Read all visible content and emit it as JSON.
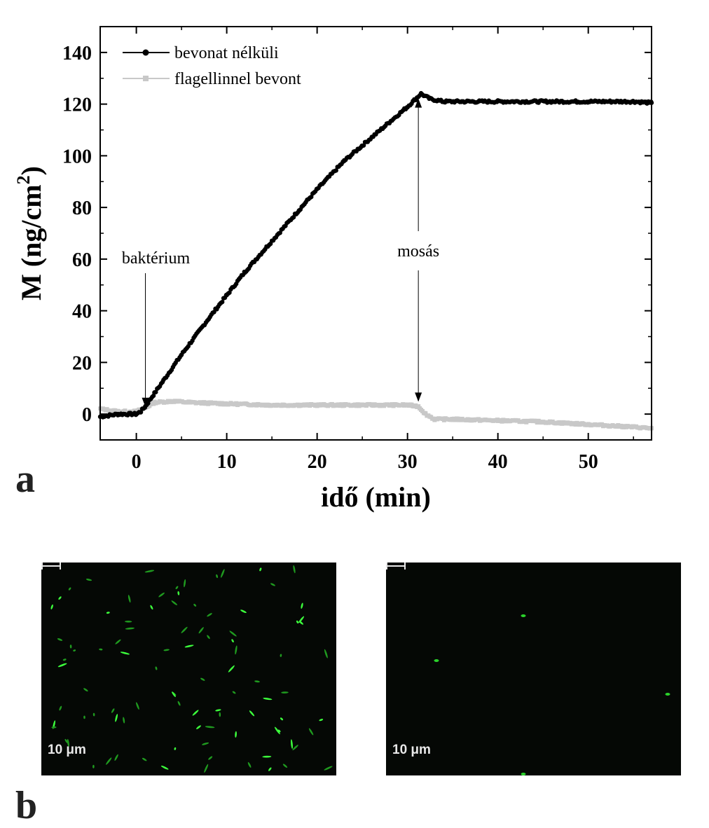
{
  "panel_a_label": "a",
  "panel_b_label": "b",
  "chart_data": {
    "type": "line",
    "title": "",
    "xlabel": "idő (min)",
    "ylabel": "M (ng/cm2)",
    "ylabel_parts": {
      "main": "M (ng/cm",
      "sup": "2",
      "end": ")"
    },
    "xlim": [
      -4,
      57
    ],
    "ylim": [
      -10,
      150
    ],
    "xticks": [
      0,
      10,
      20,
      30,
      40,
      50
    ],
    "yticks": [
      0,
      20,
      40,
      60,
      80,
      100,
      120,
      140
    ],
    "grid": false,
    "legend_position": "top-left",
    "series": [
      {
        "name": "bevonat nélküli",
        "color": "#000000",
        "marker": "circle",
        "x": [
          -4,
          -2,
          0,
          0.5,
          1,
          2,
          3,
          5,
          8,
          10,
          12,
          15,
          18,
          20,
          23,
          25,
          28,
          30,
          31.5,
          32.5,
          34,
          36,
          40,
          45,
          50,
          55,
          57
        ],
        "y": [
          -1,
          0,
          0,
          1,
          3,
          8,
          13,
          23,
          37,
          46,
          55,
          67,
          79,
          87,
          98,
          104,
          113,
          119,
          124,
          122,
          121,
          121,
          121,
          121,
          121,
          121,
          120.5
        ]
      },
      {
        "name": "flagellinnel bevont",
        "color": "#c8c8c8",
        "marker": "square",
        "x": [
          -4,
          -2,
          0,
          1,
          2,
          4,
          6,
          10,
          15,
          20,
          25,
          28,
          30,
          31.2,
          32,
          33,
          35,
          40,
          45,
          50,
          55,
          57
        ],
        "y": [
          2,
          1,
          1,
          2.5,
          4.5,
          5,
          4.5,
          4,
          3.5,
          3.5,
          3.5,
          3.5,
          3.5,
          3,
          0,
          -2,
          -2,
          -2.5,
          -3,
          -4,
          -5,
          -5.5
        ]
      }
    ],
    "annotations": [
      {
        "text": "baktérium",
        "x": 1,
        "y": 2,
        "label_y": 60
      },
      {
        "text": "mosás",
        "x": 31.2,
        "y": 4,
        "y_top": 123,
        "label_y": 62
      }
    ]
  },
  "micrographs": [
    {
      "scale_label": "10 μm",
      "density": "high"
    },
    {
      "scale_label": "10 μm",
      "density": "low"
    }
  ]
}
